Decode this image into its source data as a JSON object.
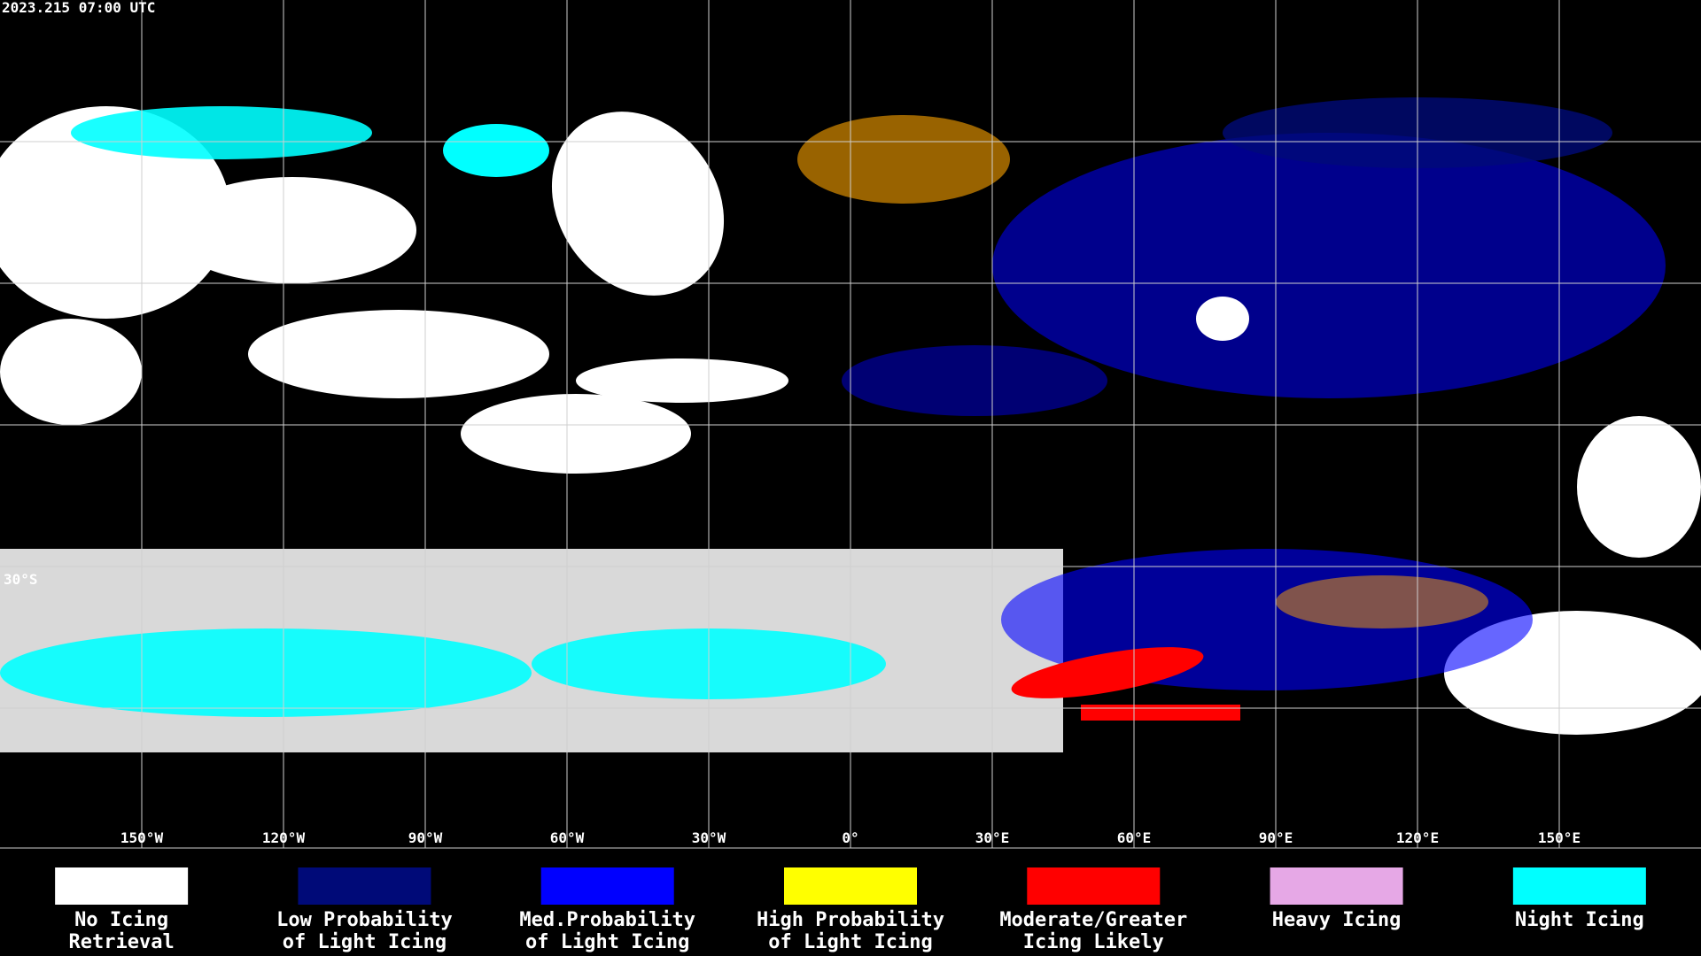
{
  "header": {
    "timestamp": "2023.215 07:00 UTC"
  },
  "map": {
    "longitude_labels": [
      "150°W",
      "120°W",
      "90°W",
      "60°W",
      "30°W",
      "0°",
      "30°E",
      "60°E",
      "90°E",
      "120°E",
      "150°E"
    ],
    "latitude_labels": [
      "30°S"
    ]
  },
  "legend": [
    {
      "lines": [
        "No Icing",
        "Retrieval"
      ],
      "color": "#ffffff"
    },
    {
      "lines": [
        "Low Probability",
        "of Light Icing"
      ],
      "color": "#000a78"
    },
    {
      "lines": [
        "Med.Probability",
        "of Light Icing"
      ],
      "color": "#0000ff"
    },
    {
      "lines": [
        "High Probability",
        "of Light Icing"
      ],
      "color": "#ffff00"
    },
    {
      "lines": [
        "Moderate/Greater",
        "Icing Likely"
      ],
      "color": "#ff0000"
    },
    {
      "lines": [
        "Heavy Icing"
      ],
      "color": "#e6a8e6"
    },
    {
      "lines": [
        "Night Icing"
      ],
      "color": "#00ffff"
    }
  ]
}
